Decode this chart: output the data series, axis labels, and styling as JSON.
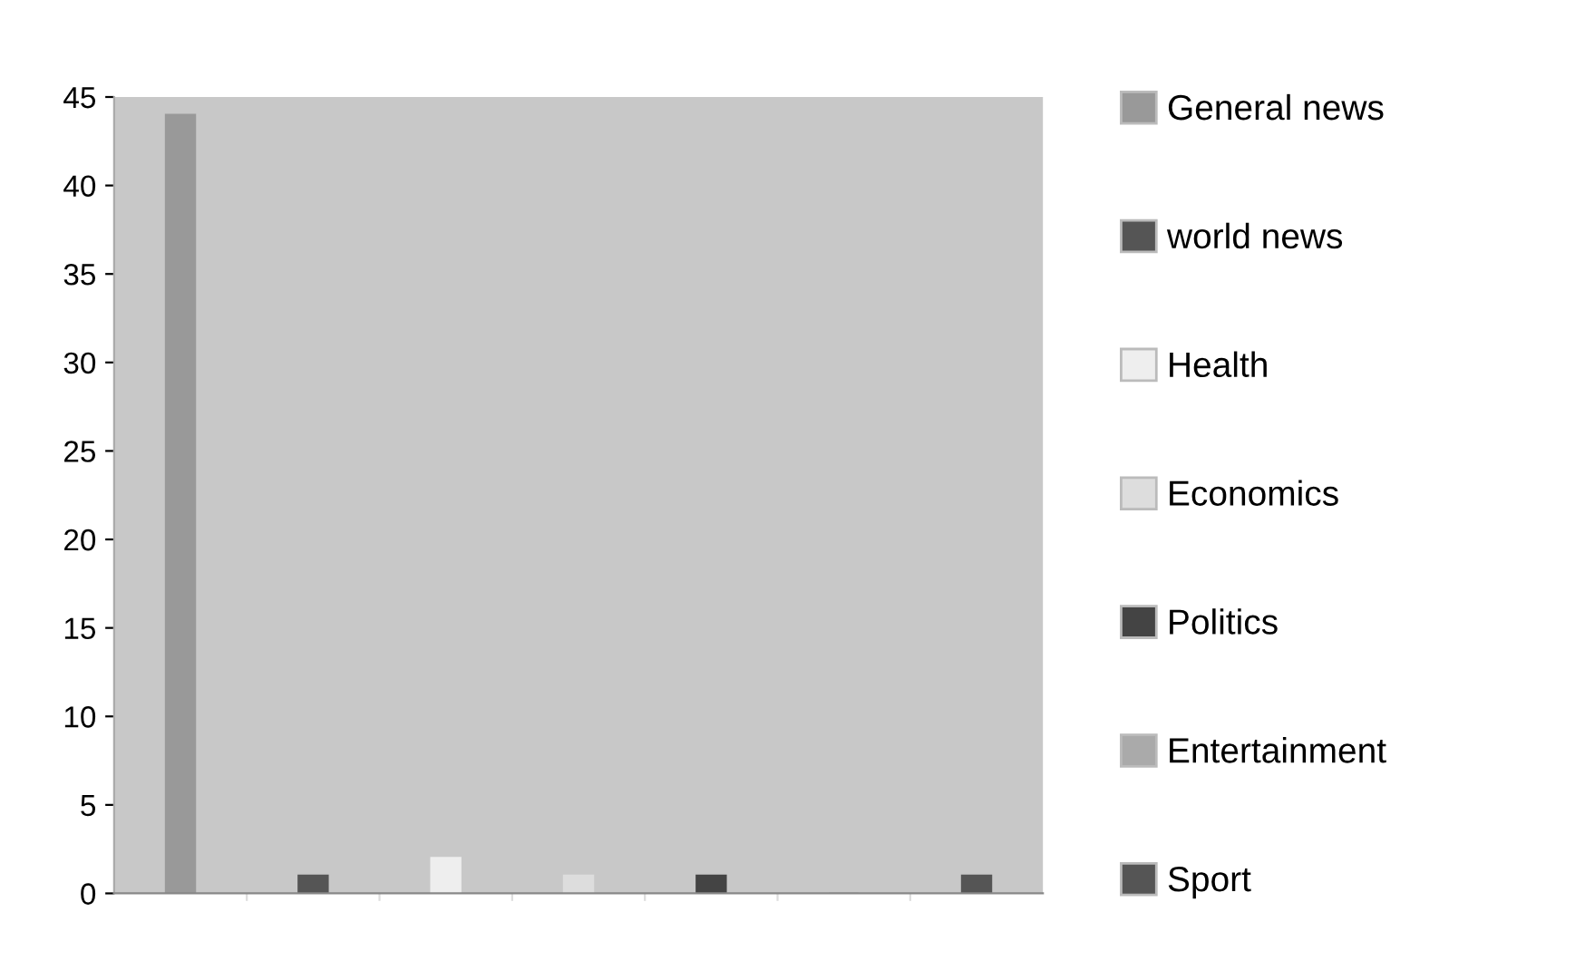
{
  "chart_data": {
    "type": "bar",
    "categories": [
      null,
      null,
      null,
      null,
      null,
      null,
      null
    ],
    "series": [
      {
        "name": "General news",
        "color": "#999999",
        "values": [
          44,
          null,
          null,
          null,
          null,
          null,
          null
        ]
      },
      {
        "name": "world news",
        "color": "#555555",
        "values": [
          null,
          1,
          null,
          null,
          null,
          null,
          null
        ]
      },
      {
        "name": "Health",
        "color": "#eeeeee",
        "values": [
          null,
          null,
          2,
          null,
          null,
          null,
          null
        ]
      },
      {
        "name": "Economics",
        "color": "#dddddd",
        "values": [
          null,
          null,
          null,
          1,
          null,
          null,
          null
        ]
      },
      {
        "name": "Politics",
        "color": "#444444",
        "values": [
          null,
          null,
          null,
          null,
          1,
          null,
          null
        ]
      },
      {
        "name": "Entertainment",
        "color": "#aaaaaa",
        "values": [
          null,
          null,
          null,
          null,
          null,
          0,
          null
        ]
      },
      {
        "name": "Sport",
        "color": "#555555",
        "values": [
          null,
          null,
          null,
          null,
          null,
          null,
          1
        ]
      }
    ],
    "ylim": [
      0,
      45
    ],
    "yticks": [
      0,
      5,
      10,
      15,
      20,
      25,
      30,
      35,
      40,
      45
    ],
    "grid": false,
    "legend": "right"
  }
}
